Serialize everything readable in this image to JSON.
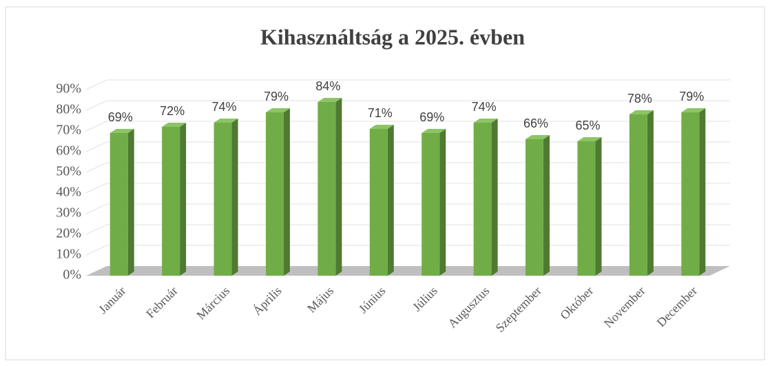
{
  "chart_data": {
    "type": "bar3d",
    "title": "Kihasználtság a 2025. évben",
    "categories": [
      "Január",
      "Február",
      "Március",
      "Április",
      "Május",
      "Június",
      "Július",
      "Augusztus",
      "Szeptember",
      "Október",
      "November",
      "December"
    ],
    "values": [
      69,
      72,
      74,
      79,
      84,
      71,
      69,
      74,
      66,
      65,
      78,
      79
    ],
    "value_labels": [
      "69%",
      "72%",
      "74%",
      "79%",
      "84%",
      "71%",
      "69%",
      "74%",
      "66%",
      "65%",
      "78%",
      "79%"
    ],
    "color": "#70ad47",
    "ylim": [
      0,
      90
    ],
    "yticks": [
      {
        "value": 0,
        "label": "0%"
      },
      {
        "value": 10,
        "label": "10%"
      },
      {
        "value": 20,
        "label": "20%"
      },
      {
        "value": 30,
        "label": "30%"
      },
      {
        "value": 40,
        "label": "40%"
      },
      {
        "value": 50,
        "label": "50%"
      },
      {
        "value": 60,
        "label": "60%"
      },
      {
        "value": 70,
        "label": "70%"
      },
      {
        "value": 80,
        "label": "80%"
      },
      {
        "value": 90,
        "label": "90%"
      }
    ],
    "grid": true
  }
}
